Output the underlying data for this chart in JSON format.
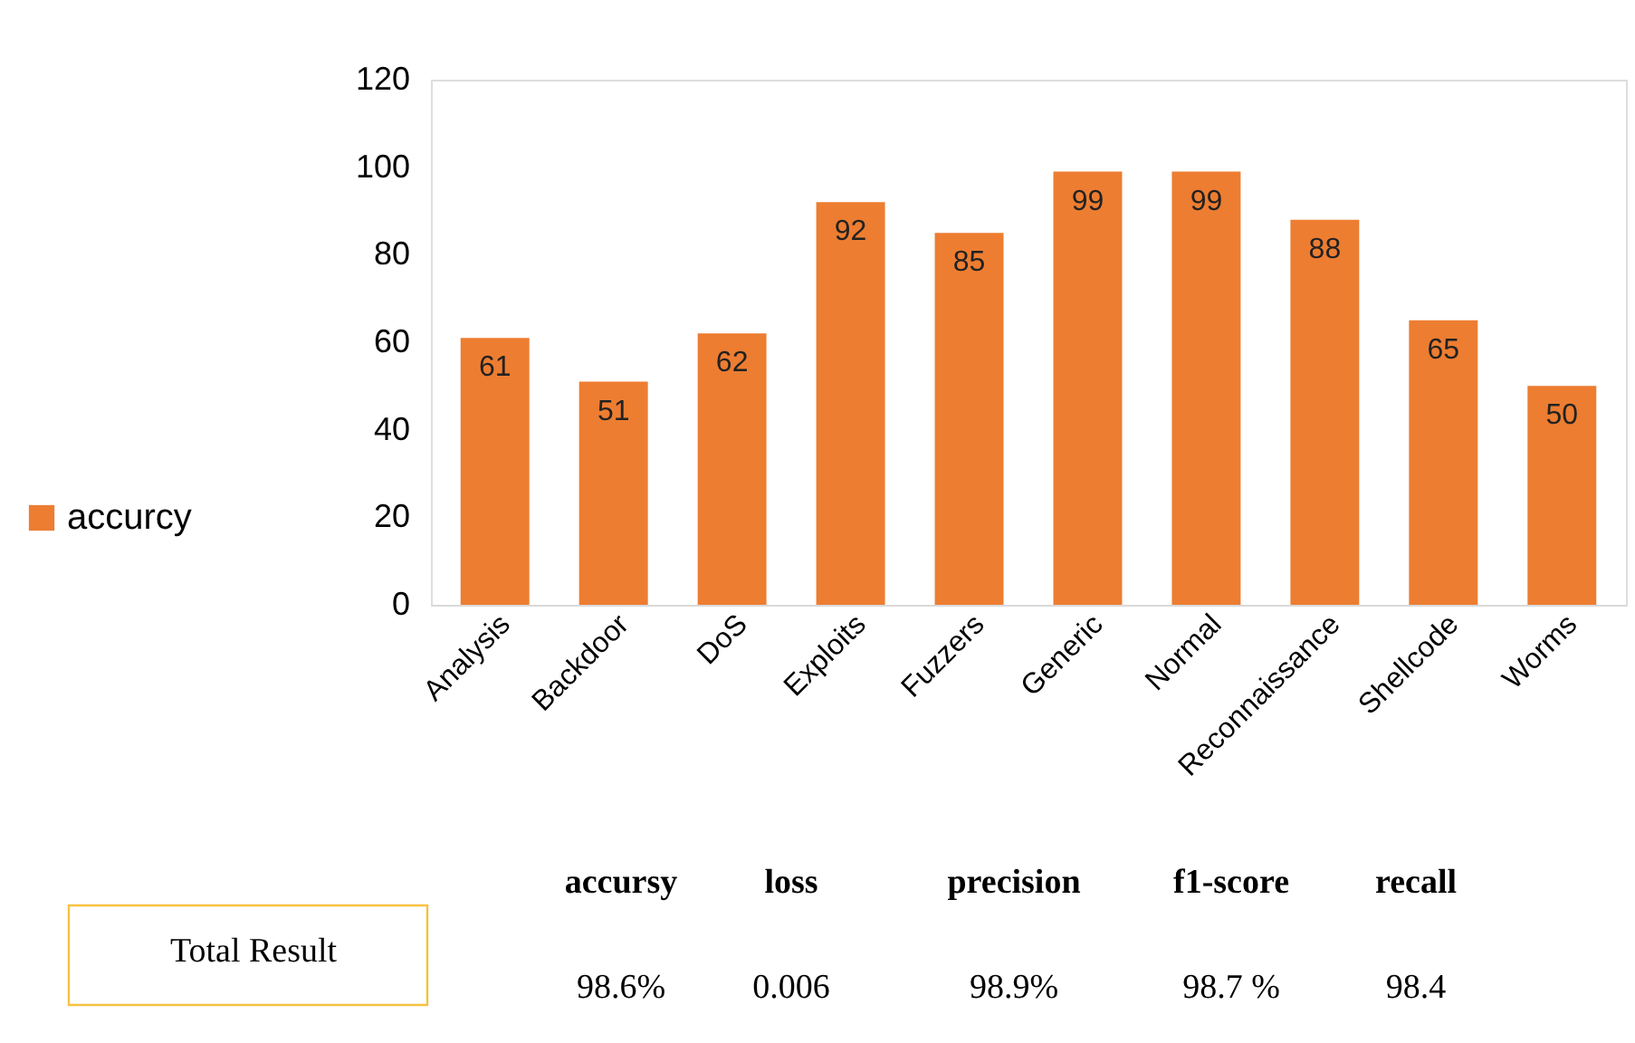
{
  "chart_data": {
    "type": "bar",
    "categories": [
      "Analysis",
      "Backdoor",
      "DoS",
      "Exploits",
      "Fuzzers",
      "Generic",
      "Normal",
      "Reconnaissance",
      "Shellcode",
      "Worms"
    ],
    "series": [
      {
        "name": "accurcy",
        "color": "#ed7d31",
        "values": [
          61,
          51,
          62,
          92,
          85,
          99,
          99,
          88,
          65,
          50
        ]
      }
    ],
    "ylim": [
      0,
      120
    ],
    "yticks": [
      0,
      20,
      40,
      60,
      80,
      100,
      120
    ],
    "data_labels": true,
    "legend": "left",
    "annotations": [
      "Total  Result",
      "accursy",
      "loss",
      "precision",
      "f1-score",
      "recall",
      "98.6%",
      "0.006",
      "98.9%",
      "98.7 %",
      "98.4"
    ]
  }
}
